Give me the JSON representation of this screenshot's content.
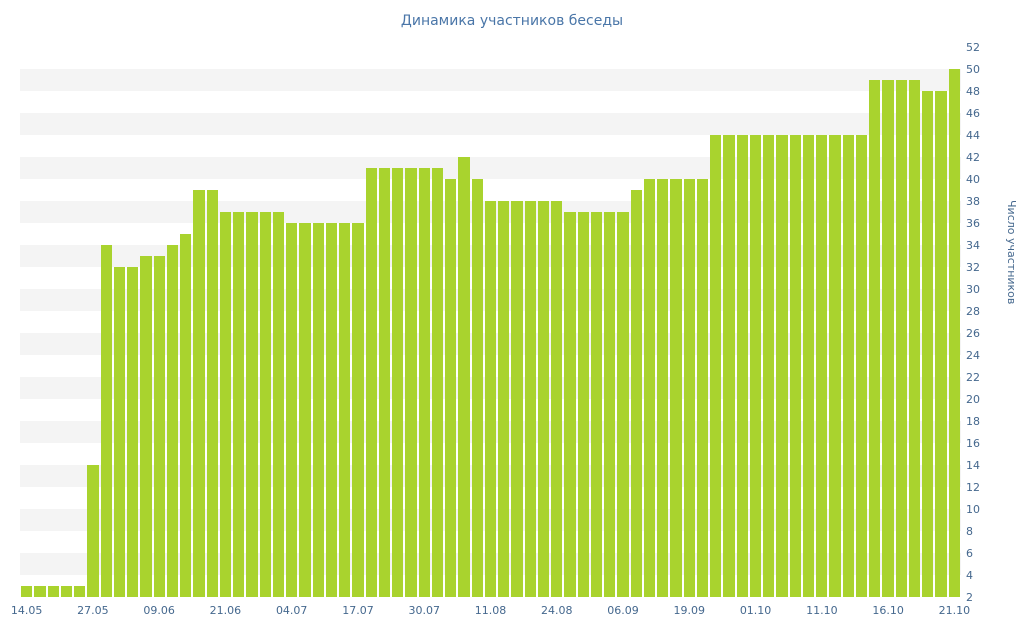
{
  "chart_data": {
    "type": "bar",
    "title": "Динамика участников беседы",
    "ylabel": "Число участников",
    "xlabel": "",
    "ylim": [
      2,
      52
    ],
    "ytick_step": 2,
    "grid": "alternating horizontal bands",
    "legend": "none",
    "x_labels": [
      "14.05",
      "27.05",
      "09.06",
      "21.06",
      "04.07",
      "17.07",
      "30.07",
      "11.08",
      "24.08",
      "06.09",
      "19.09",
      "01.10",
      "11.10",
      "16.10",
      "21.10"
    ],
    "label_every_n_bars": 5,
    "values": [
      3,
      3,
      3,
      3,
      3,
      14,
      34,
      32,
      32,
      33,
      33,
      34,
      35,
      39,
      39,
      37,
      37,
      37,
      37,
      37,
      36,
      36,
      36,
      36,
      36,
      36,
      41,
      41,
      41,
      41,
      41,
      41,
      40,
      42,
      40,
      38,
      38,
      38,
      38,
      38,
      38,
      37,
      37,
      37,
      37,
      37,
      39,
      40,
      40,
      40,
      40,
      40,
      44,
      44,
      44,
      44,
      44,
      44,
      44,
      44,
      44,
      44,
      44,
      44,
      49,
      49,
      49,
      49,
      48,
      48,
      50
    ],
    "colors": {
      "bar": "#a9d32e",
      "stripe": "#f4f4f4",
      "title_text": "#4a76a8",
      "axis_text": "#45688e"
    }
  }
}
